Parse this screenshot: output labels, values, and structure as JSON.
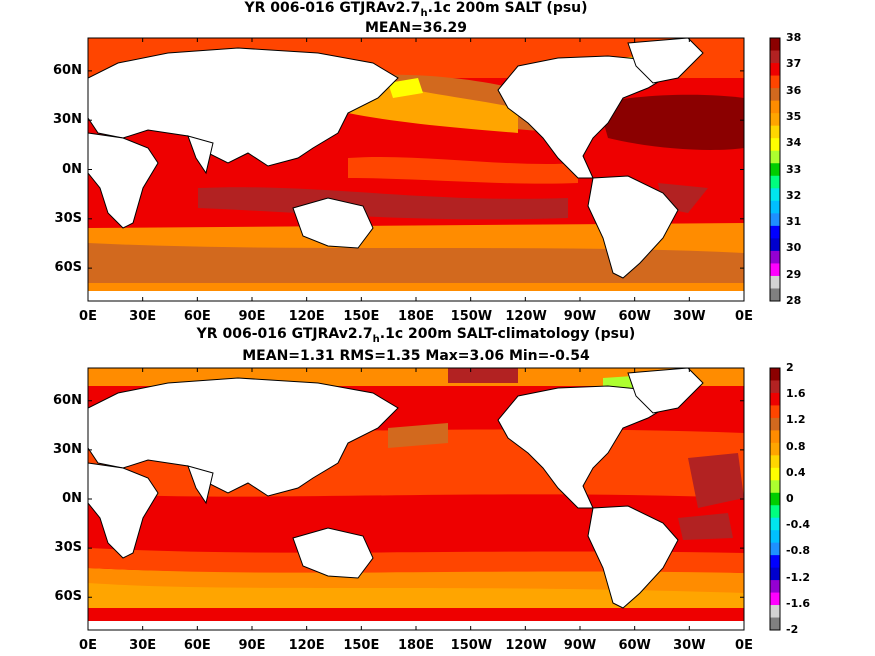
{
  "panels": [
    {
      "title_pre": "YR 006-016 GTJRAv2.7",
      "title_sub": "h",
      "title_post": ".1c 200m SALT (psu)",
      "stats": "MEAN=36.29",
      "colorbar": {
        "ticks": [
          "38",
          "37",
          "36",
          "35",
          "34",
          "33",
          "32",
          "31",
          "30",
          "29",
          "28"
        ],
        "colors": [
          "#8b0000",
          "#b22222",
          "#ee0000",
          "#ff4500",
          "#d2691e",
          "#ff8c00",
          "#ffa500",
          "#ffd700",
          "#ffff00",
          "#adff2f",
          "#00cd00",
          "#00ff7f",
          "#00e5ee",
          "#00bfff",
          "#1e90ff",
          "#0000ff",
          "#0000cd",
          "#9400d3",
          "#ff00ff",
          "#d3d3d3",
          "#808080"
        ]
      }
    },
    {
      "title_pre": "YR 006-016 GTJRAv2.7",
      "title_sub": "h",
      "title_post": ".1c 200m SALT-climatology (psu)",
      "stats": "MEAN=1.31   RMS=1.35   Max=3.06   Min=-0.54",
      "colorbar": {
        "ticks": [
          "2",
          "1.6",
          "1.2",
          "0.8",
          "0.4",
          "0",
          "-0.4",
          "-0.8",
          "-1.2",
          "-1.6",
          "-2"
        ],
        "colors": [
          "#8b0000",
          "#b22222",
          "#ee0000",
          "#ff4500",
          "#d2691e",
          "#ff8c00",
          "#ffa500",
          "#ffd700",
          "#ffff00",
          "#adff2f",
          "#00cd00",
          "#00ff7f",
          "#00e5ee",
          "#00bfff",
          "#1e90ff",
          "#0000ff",
          "#0000cd",
          "#9400d3",
          "#ff00ff",
          "#d3d3d3",
          "#808080"
        ]
      }
    }
  ],
  "axes": {
    "x_ticks": [
      "0E",
      "30E",
      "60E",
      "90E",
      "120E",
      "150E",
      "180E",
      "150W",
      "120W",
      "90W",
      "60W",
      "30W",
      "0E"
    ],
    "y_ticks": [
      "60N",
      "30N",
      "0N",
      "30S",
      "60S"
    ]
  }
}
